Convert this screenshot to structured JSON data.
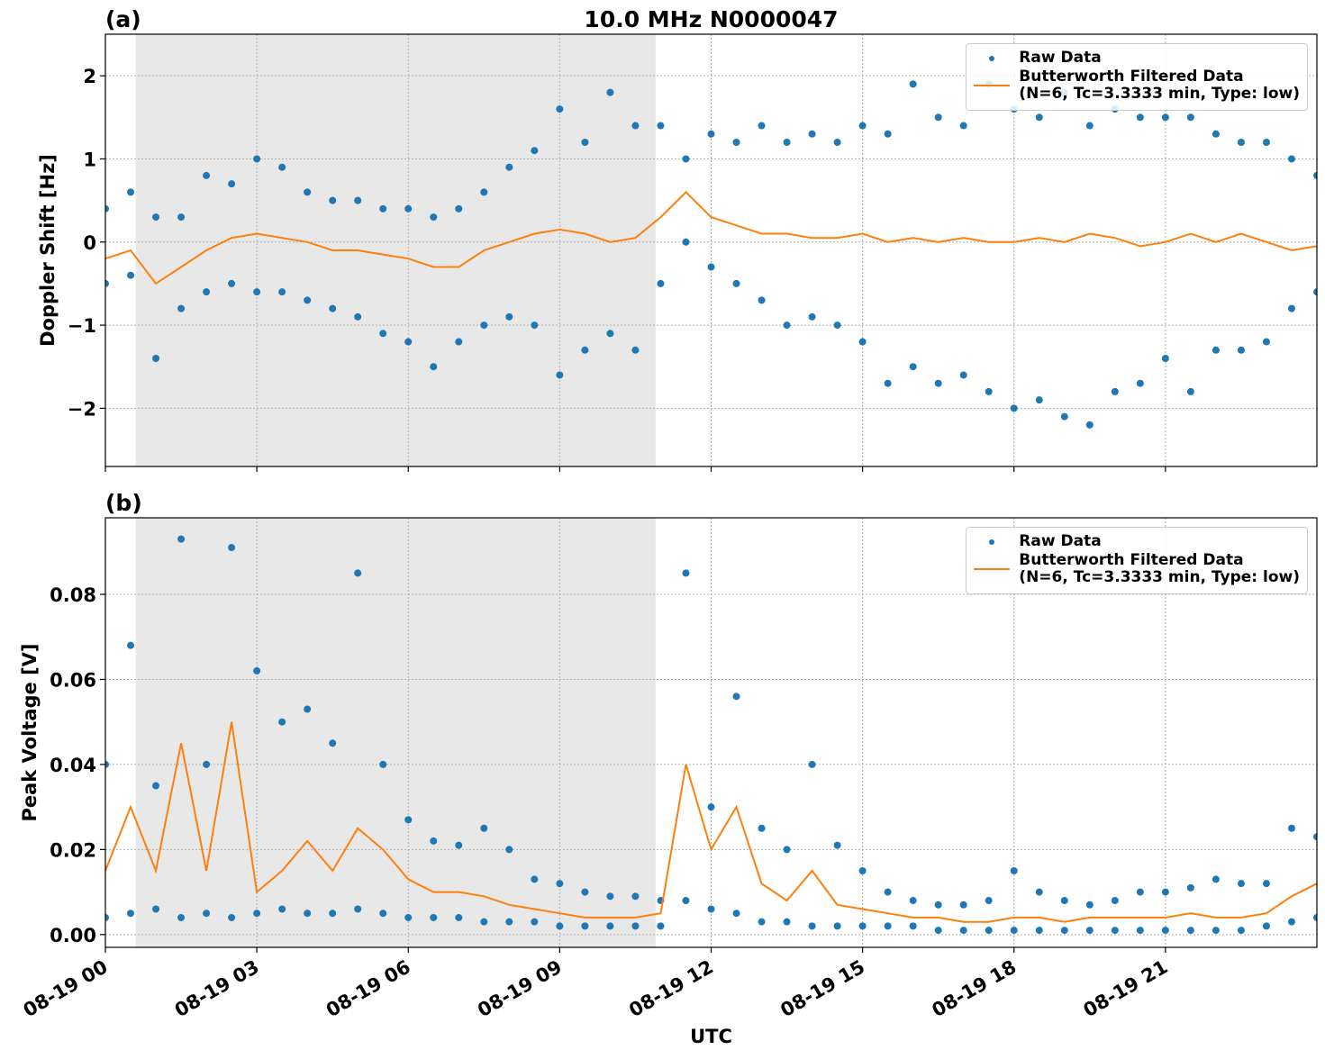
{
  "chart_data": [
    {
      "type": "scatter",
      "title": "10.0 MHz N0000047",
      "panel_label": "(a)",
      "ylabel": "Doppler Shift [Hz]",
      "xlim": [
        0,
        24
      ],
      "xticks": [
        0,
        3,
        6,
        9,
        12,
        15,
        18,
        21
      ],
      "ylim": [
        -2.7,
        2.5
      ],
      "yticks": [
        {
          "value": -2,
          "label": "−2"
        },
        {
          "value": -1,
          "label": "−1"
        },
        0,
        1,
        2
      ],
      "grid": true,
      "legend": "upper right",
      "shaded_span": [
        0.6,
        10.9
      ],
      "shade_color": "#e8e8e8",
      "series": [
        {
          "name": "Raw Data",
          "type": "scatter",
          "color": "#1f77b4",
          "x": [
            0,
            0.5,
            1,
            1.5,
            2,
            2.5,
            3,
            3.5,
            4,
            4.5,
            5,
            5.5,
            6,
            6.5,
            7,
            7.5,
            8,
            8.5,
            9,
            9.5,
            10,
            10.5,
            11,
            11.5,
            12,
            12.5,
            13,
            13.5,
            14,
            14.5,
            15,
            15.5,
            16,
            16.5,
            17,
            17.5,
            18,
            18.5,
            19,
            19.5,
            20,
            20.5,
            21,
            21.5,
            22,
            22.5,
            23,
            23.5,
            24,
            0,
            0.5,
            1,
            1.5,
            2,
            2.5,
            3,
            3.5,
            4,
            4.5,
            5,
            5.5,
            6,
            6.5,
            7,
            7.5,
            8,
            8.5,
            9,
            9.5,
            10,
            10.5,
            11,
            11.5,
            12,
            12.5,
            13,
            13.5,
            14,
            14.5,
            15,
            15.5,
            16,
            16.5,
            17,
            17.5,
            18,
            18.5,
            19,
            19.5,
            20,
            20.5,
            21,
            21.5,
            22,
            22.5,
            23,
            23.5,
            24
          ],
          "values": [
            0.4,
            0.6,
            0.3,
            0.3,
            0.8,
            0.7,
            1.0,
            0.9,
            0.6,
            0.5,
            0.5,
            0.4,
            0.4,
            0.3,
            0.4,
            0.6,
            0.9,
            1.1,
            1.6,
            1.2,
            1.8,
            1.4,
            1.4,
            1.0,
            1.3,
            1.2,
            1.4,
            1.2,
            1.3,
            1.2,
            1.4,
            1.3,
            1.9,
            1.5,
            1.4,
            1.9,
            1.6,
            1.5,
            1.8,
            1.4,
            1.6,
            1.5,
            1.5,
            1.5,
            1.3,
            1.2,
            1.2,
            1.0,
            0.8,
            -0.5,
            -0.4,
            -1.4,
            -0.8,
            -0.6,
            -0.5,
            -0.6,
            -0.6,
            -0.7,
            -0.8,
            -0.9,
            -1.1,
            -1.2,
            -1.5,
            -1.2,
            -1.0,
            -0.9,
            -1.0,
            -1.6,
            -1.3,
            -1.1,
            -1.3,
            -0.5,
            0.0,
            -0.3,
            -0.5,
            -0.7,
            -1.0,
            -0.9,
            -1.0,
            -1.2,
            -1.7,
            -1.5,
            -1.7,
            -1.6,
            -1.8,
            -2.0,
            -1.9,
            -2.1,
            -2.2,
            -1.8,
            -1.7,
            -1.4,
            -1.8,
            -1.3,
            -1.3,
            -1.2,
            -0.8,
            -0.6
          ]
        },
        {
          "name": "Butterworth Filtered Data\n(N=6, Tc=3.3333 min, Type: low)",
          "type": "line",
          "color": "#ff7f0e",
          "x": [
            0,
            0.5,
            1,
            1.5,
            2,
            2.5,
            3,
            3.5,
            4,
            4.5,
            5,
            5.5,
            6,
            6.5,
            7,
            7.5,
            8,
            8.5,
            9,
            9.5,
            10,
            10.5,
            11,
            11.5,
            12,
            12.5,
            13,
            13.5,
            14,
            14.5,
            15,
            15.5,
            16,
            16.5,
            17,
            17.5,
            18,
            18.5,
            19,
            19.5,
            20,
            20.5,
            21,
            21.5,
            22,
            22.5,
            23,
            23.5,
            24
          ],
          "values": [
            -0.2,
            -0.1,
            -0.5,
            -0.3,
            -0.1,
            0.05,
            0.1,
            0.05,
            0.0,
            -0.1,
            -0.1,
            -0.15,
            -0.2,
            -0.3,
            -0.3,
            -0.1,
            0.0,
            0.1,
            0.15,
            0.1,
            0.0,
            0.05,
            0.3,
            0.6,
            0.3,
            0.2,
            0.1,
            0.1,
            0.05,
            0.05,
            0.1,
            0.0,
            0.05,
            0.0,
            0.05,
            0.0,
            0.0,
            0.05,
            0.0,
            0.1,
            0.05,
            -0.05,
            0.0,
            0.1,
            0.0,
            0.1,
            0.0,
            -0.1,
            -0.05
          ]
        }
      ]
    },
    {
      "type": "scatter",
      "panel_label": "(b)",
      "ylabel": "Peak Voltage [V]",
      "xlabel": "UTC",
      "xlim": [
        0,
        24
      ],
      "xticks": [
        {
          "value": 0,
          "label": "08-19 00"
        },
        {
          "value": 3,
          "label": "08-19 03"
        },
        {
          "value": 6,
          "label": "08-19 06"
        },
        {
          "value": 9,
          "label": "08-19 09"
        },
        {
          "value": 12,
          "label": "08-19 12"
        },
        {
          "value": 15,
          "label": "08-19 15"
        },
        {
          "value": 18,
          "label": "08-19 18"
        },
        {
          "value": 21,
          "label": "08-19 21"
        }
      ],
      "ylim": [
        -0.003,
        0.098
      ],
      "yticks": [
        {
          "value": 0,
          "label": "0.00"
        },
        {
          "value": 0.02,
          "label": "0.02"
        },
        {
          "value": 0.04,
          "label": "0.04"
        },
        {
          "value": 0.06,
          "label": "0.06"
        },
        {
          "value": 0.08,
          "label": "0.08"
        }
      ],
      "grid": true,
      "legend": "upper right",
      "shaded_span": [
        0.6,
        10.9
      ],
      "shade_color": "#e8e8e8",
      "series": [
        {
          "name": "Raw Data",
          "type": "scatter",
          "color": "#1f77b4",
          "x": [
            0,
            0.5,
            1,
            1.5,
            2,
            2.5,
            3,
            3.5,
            4,
            4.5,
            5,
            5.5,
            6,
            6.5,
            7,
            7.5,
            8,
            8.5,
            9,
            9.5,
            10,
            10.5,
            11,
            11.5,
            12,
            12.5,
            13,
            13.5,
            14,
            14.5,
            15,
            15.5,
            16,
            16.5,
            17,
            17.5,
            18,
            18.5,
            19,
            19.5,
            20,
            20.5,
            21,
            21.5,
            22,
            22.5,
            23,
            23.5,
            24,
            0,
            0.5,
            1,
            1.5,
            2,
            2.5,
            3,
            3.5,
            4,
            4.5,
            5,
            5.5,
            6,
            6.5,
            7,
            7.5,
            8,
            8.5,
            9,
            9.5,
            10,
            10.5,
            11,
            11.5,
            12,
            12.5,
            13,
            13.5,
            14,
            14.5,
            15,
            15.5,
            16,
            16.5,
            17,
            17.5,
            18,
            18.5,
            19,
            19.5,
            20,
            20.5,
            21,
            21.5,
            22,
            22.5,
            23,
            23.5,
            24
          ],
          "values": [
            0.04,
            0.068,
            0.035,
            0.093,
            0.04,
            0.091,
            0.062,
            0.05,
            0.053,
            0.045,
            0.085,
            0.04,
            0.027,
            0.022,
            0.021,
            0.025,
            0.02,
            0.013,
            0.012,
            0.01,
            0.009,
            0.009,
            0.008,
            0.085,
            0.03,
            0.056,
            0.025,
            0.02,
            0.04,
            0.021,
            0.015,
            0.01,
            0.008,
            0.007,
            0.007,
            0.008,
            0.015,
            0.01,
            0.008,
            0.007,
            0.008,
            0.01,
            0.01,
            0.011,
            0.013,
            0.012,
            0.012,
            0.025,
            0.023,
            0.004,
            0.005,
            0.006,
            0.004,
            0.005,
            0.004,
            0.005,
            0.006,
            0.005,
            0.005,
            0.006,
            0.005,
            0.004,
            0.004,
            0.004,
            0.003,
            0.003,
            0.003,
            0.002,
            0.002,
            0.002,
            0.002,
            0.002,
            0.008,
            0.006,
            0.005,
            0.003,
            0.003,
            0.002,
            0.002,
            0.002,
            0.002,
            0.002,
            0.001,
            0.001,
            0.001,
            0.001,
            0.001,
            0.001,
            0.001,
            0.001,
            0.001,
            0.001,
            0.001,
            0.001,
            0.001,
            0.002,
            0.003,
            0.004
          ]
        },
        {
          "name": "Butterworth Filtered Data\n(N=6, Tc=3.3333 min, Type: low)",
          "type": "line",
          "color": "#ff7f0e",
          "x": [
            0,
            0.5,
            1,
            1.5,
            2,
            2.5,
            3,
            3.5,
            4,
            4.5,
            5,
            5.5,
            6,
            6.5,
            7,
            7.5,
            8,
            8.5,
            9,
            9.5,
            10,
            10.5,
            11,
            11.5,
            12,
            12.5,
            13,
            13.5,
            14,
            14.5,
            15,
            15.5,
            16,
            16.5,
            17,
            17.5,
            18,
            18.5,
            19,
            19.5,
            20,
            20.5,
            21,
            21.5,
            22,
            22.5,
            23,
            23.5,
            24
          ],
          "values": [
            0.015,
            0.03,
            0.015,
            0.045,
            0.015,
            0.05,
            0.01,
            0.015,
            0.022,
            0.015,
            0.025,
            0.02,
            0.013,
            0.01,
            0.01,
            0.009,
            0.007,
            0.006,
            0.005,
            0.004,
            0.004,
            0.004,
            0.005,
            0.04,
            0.02,
            0.03,
            0.012,
            0.008,
            0.015,
            0.007,
            0.006,
            0.005,
            0.004,
            0.004,
            0.003,
            0.003,
            0.004,
            0.004,
            0.003,
            0.004,
            0.004,
            0.004,
            0.004,
            0.005,
            0.004,
            0.004,
            0.005,
            0.009,
            0.012
          ]
        }
      ]
    }
  ]
}
